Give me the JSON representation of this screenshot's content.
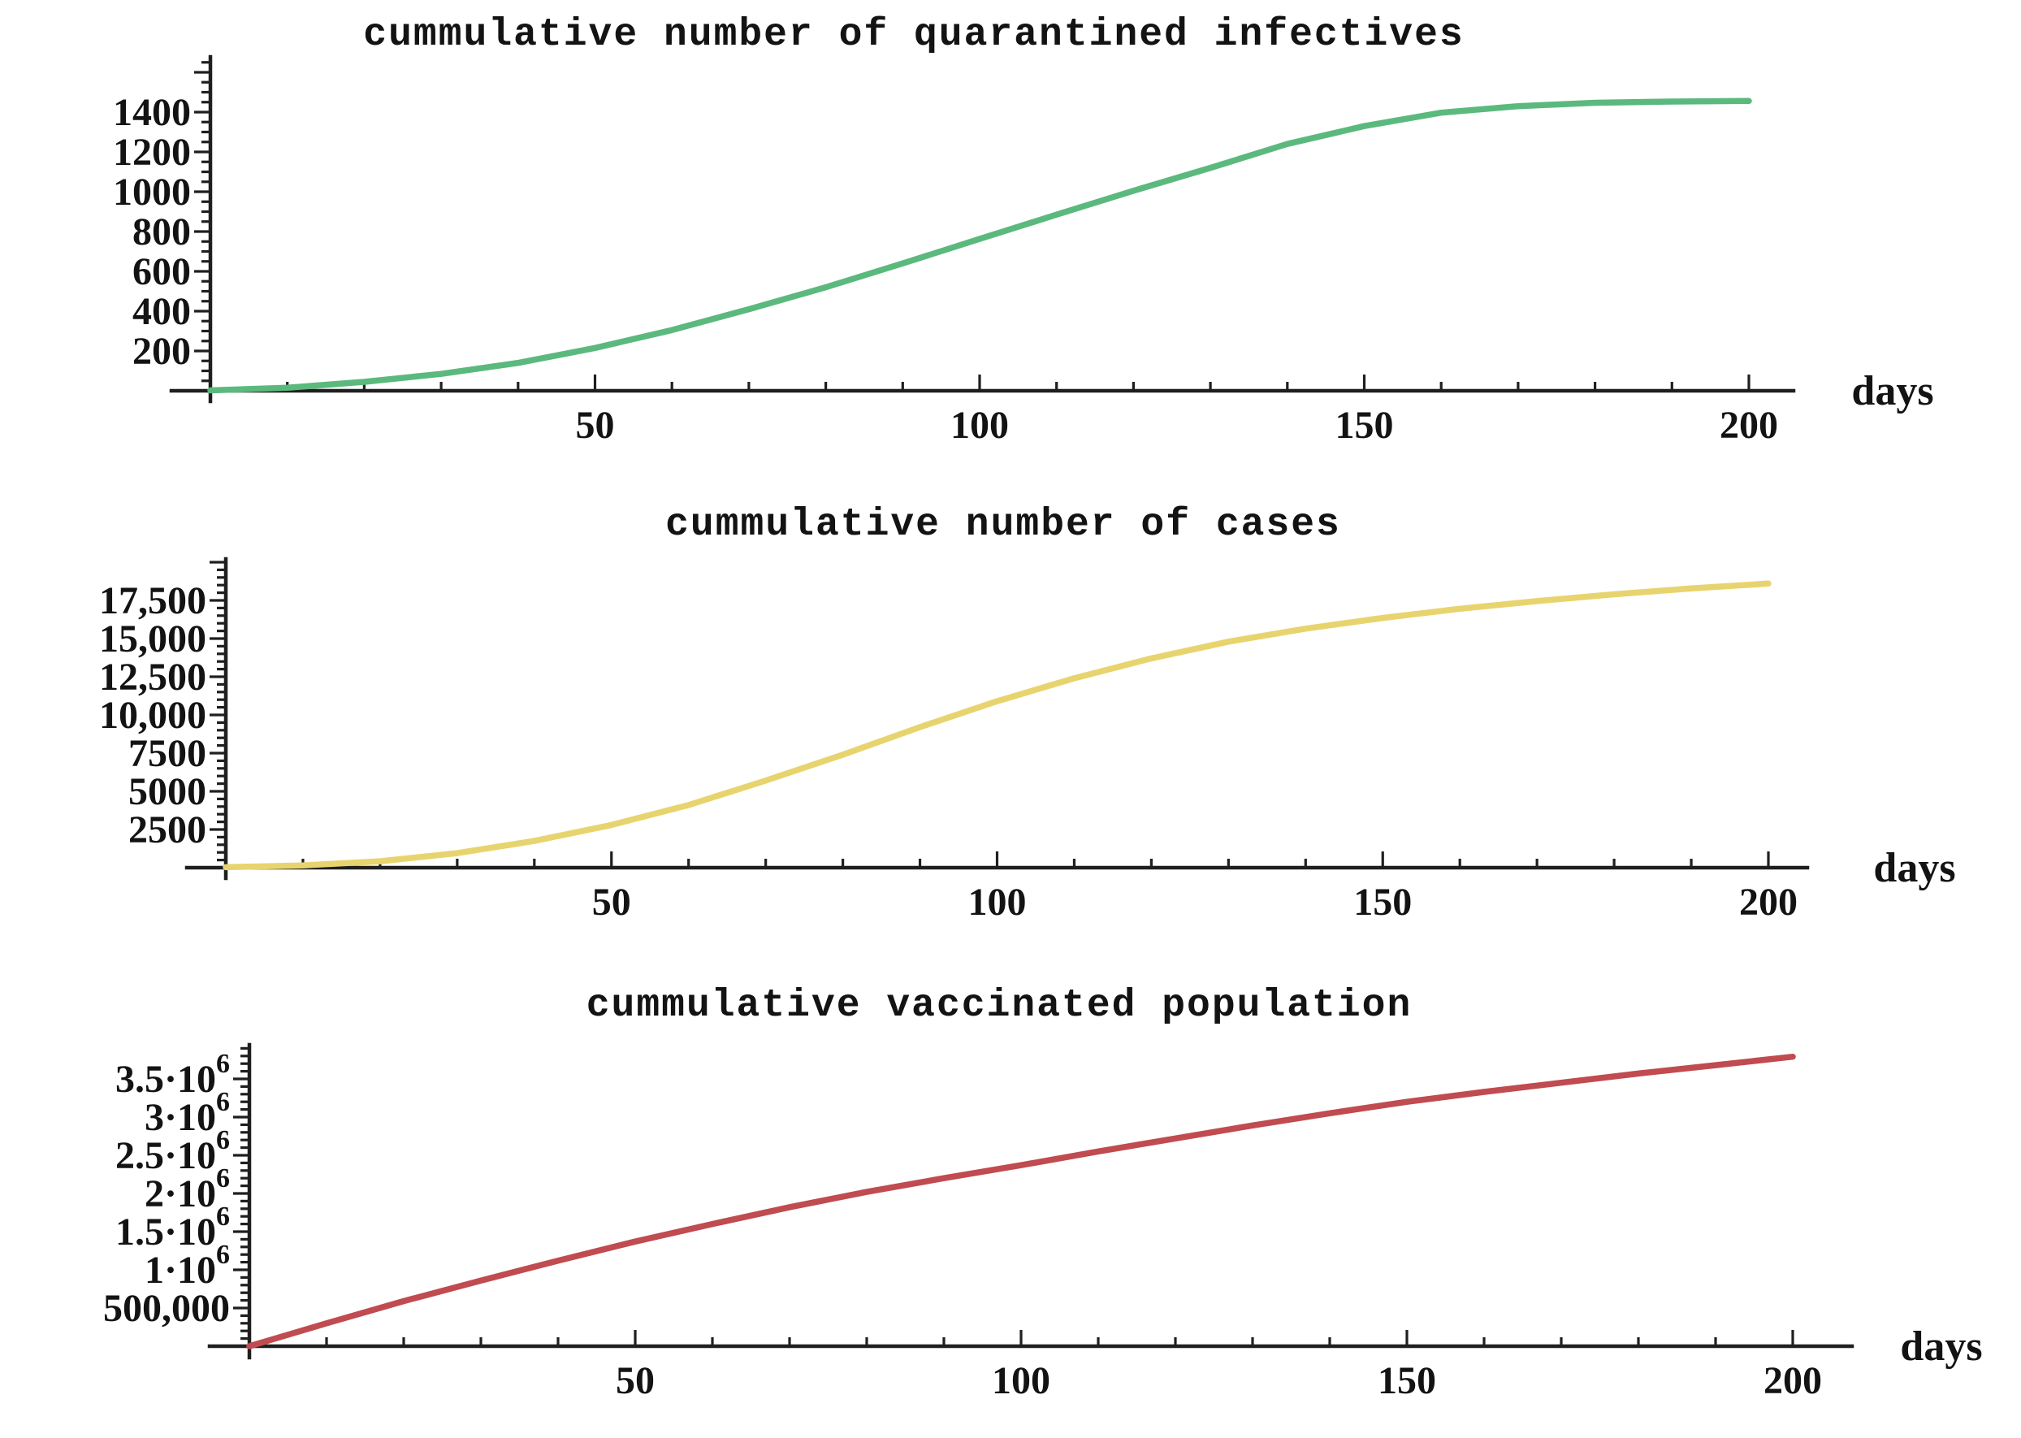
{
  "page": {
    "background": "#ffffff",
    "text_color": "#131313",
    "axis_color": "#1f1f1f"
  },
  "chart_data": [
    {
      "type": "line",
      "title": "cummulative number of quarantined infectives",
      "x_axis_label": "days",
      "line_color": "#5bb97e",
      "grid": false,
      "legend": "none",
      "x_range": [
        0,
        205
      ],
      "y_range": [
        0,
        1680
      ],
      "x_major_ticks": [
        50,
        100,
        150,
        200
      ],
      "x_minor_step": 10,
      "y_major_step": 200,
      "y_minor_step": 50,
      "y_top_tick": 1650,
      "y_tick_labels": [
        {
          "v": 200,
          "label": "200"
        },
        {
          "v": 400,
          "label": "400"
        },
        {
          "v": 600,
          "label": "600"
        },
        {
          "v": 800,
          "label": "800"
        },
        {
          "v": 1000,
          "label": "1000"
        },
        {
          "v": 1200,
          "label": "1200"
        },
        {
          "v": 1400,
          "label": "1400"
        }
      ],
      "series": {
        "name": "quarantined infectives",
        "x": [
          0,
          10,
          20,
          30,
          40,
          50,
          60,
          70,
          80,
          90,
          100,
          110,
          120,
          130,
          140,
          150,
          160,
          170,
          180,
          190,
          200
        ],
        "y": [
          2,
          15,
          45,
          85,
          140,
          215,
          305,
          410,
          520,
          640,
          763,
          885,
          1005,
          1120,
          1240,
          1330,
          1397,
          1430,
          1447,
          1453,
          1456
        ]
      }
    },
    {
      "type": "line",
      "title": "cummulative number of cases",
      "x_axis_label": "days",
      "line_color": "#e8d46e",
      "grid": false,
      "legend": "none",
      "x_range": [
        0,
        205
      ],
      "y_range": [
        0,
        20200
      ],
      "x_major_ticks": [
        50,
        100,
        150,
        200
      ],
      "x_minor_step": 10,
      "y_major_step": 2500,
      "y_minor_step": 500,
      "y_top_tick": 20000,
      "y_tick_labels": [
        {
          "v": 2500,
          "label": "2500"
        },
        {
          "v": 5000,
          "label": "5000"
        },
        {
          "v": 7500,
          "label": "7500"
        },
        {
          "v": 10000,
          "label": "10,000"
        },
        {
          "v": 12500,
          "label": "12,500"
        },
        {
          "v": 15000,
          "label": "15,000"
        },
        {
          "v": 17500,
          "label": "17,500"
        }
      ],
      "series": {
        "name": "cases",
        "x": [
          0,
          10,
          20,
          30,
          40,
          50,
          60,
          70,
          80,
          90,
          100,
          110,
          120,
          130,
          140,
          150,
          160,
          170,
          180,
          190,
          200
        ],
        "y": [
          30,
          150,
          420,
          950,
          1750,
          2800,
          4100,
          5700,
          7400,
          9200,
          10900,
          12400,
          13700,
          14800,
          15650,
          16350,
          16950,
          17450,
          17900,
          18280,
          18600
        ]
      }
    },
    {
      "type": "line",
      "title": "cummulative vaccinated population",
      "x_axis_label": "days",
      "line_color": "#c04b50",
      "grid": false,
      "legend": "none",
      "x_range": [
        0,
        205
      ],
      "y_range": [
        0,
        3900000
      ],
      "x_major_ticks": [
        50,
        100,
        150,
        200
      ],
      "x_minor_step": 10,
      "y_major_step": 500000,
      "y_minor_step": 100000,
      "y_top_tick": 3900000,
      "y_tick_labels": [
        {
          "v": 500000,
          "label": "500,000"
        },
        {
          "v": 1000000,
          "label": "1·10^6"
        },
        {
          "v": 1500000,
          "label": "1.5·10^6"
        },
        {
          "v": 2000000,
          "label": "2·10^6"
        },
        {
          "v": 2500000,
          "label": "2.5·10^6"
        },
        {
          "v": 3000000,
          "label": "3·10^6"
        },
        {
          "v": 3500000,
          "label": "3.5·10^6"
        }
      ],
      "series": {
        "name": "vaccinated population",
        "x": [
          0,
          10,
          20,
          30,
          40,
          50,
          60,
          70,
          80,
          90,
          100,
          110,
          120,
          130,
          140,
          150,
          160,
          170,
          180,
          190,
          200
        ],
        "y": [
          0,
          300000,
          590000,
          860000,
          1120000,
          1370000,
          1600000,
          1820000,
          2020000,
          2200000,
          2370000,
          2550000,
          2720000,
          2890000,
          3050000,
          3200000,
          3330000,
          3450000,
          3570000,
          3680000,
          3790000
        ]
      }
    }
  ]
}
